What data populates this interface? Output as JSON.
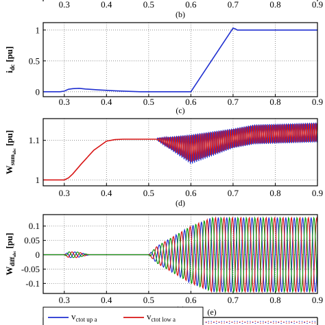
{
  "colors": {
    "blue": "#1f2fd0",
    "red": "#d81515",
    "green": "#139a13",
    "grid": "#7a7a7a",
    "axis": "#000000"
  },
  "chart_data": [
    {
      "id": "top-axis-strip",
      "type": "line",
      "panel_label": "(b)",
      "xlim": [
        0.25,
        0.9
      ],
      "xticks": [
        0.3,
        0.4,
        0.5,
        0.6,
        0.7,
        0.8,
        0.9
      ],
      "xtick_labels": [
        "0.3",
        "0.4",
        "0.5",
        "0.6",
        "0.7",
        "0.8",
        "0.9"
      ]
    },
    {
      "id": "idc",
      "type": "line",
      "panel_label": "(c)",
      "ylabel": "i",
      "ylabel_sub": "dc",
      "ylabel_unit": " [pu]",
      "xlim": [
        0.25,
        0.9
      ],
      "ylim": [
        -0.08,
        1.12
      ],
      "yticks": [
        0,
        0.5,
        1
      ],
      "ytick_labels": [
        "0",
        "0.5",
        "1"
      ],
      "xticks": [
        0.3,
        0.4,
        0.5,
        0.6,
        0.7,
        0.8,
        0.9
      ],
      "xtick_labels": [
        "0.3",
        "0.4",
        "0.5",
        "0.6",
        "0.7",
        "0.8",
        "0.9"
      ],
      "series": [
        {
          "color": "blue",
          "x": [
            0.25,
            0.29,
            0.3,
            0.31,
            0.32,
            0.335,
            0.35,
            0.38,
            0.42,
            0.48,
            0.55,
            0.6,
            0.6,
            0.7,
            0.705,
            0.71,
            0.72,
            0.9
          ],
          "y": [
            0.0,
            0.0,
            0.01,
            0.04,
            0.05,
            0.055,
            0.045,
            0.03,
            0.015,
            0.0,
            0.0,
            0.0,
            0.0,
            1.03,
            1.02,
            1.0,
            1.0,
            1.0
          ]
        }
      ]
    },
    {
      "id": "wsum",
      "type": "line",
      "panel_label": "(d)",
      "ylabel": "W",
      "ylabel_sub": "sum",
      "ylabel_subsub": "abc",
      "ylabel_unit": " [pu]",
      "xlim": [
        0.25,
        0.9
      ],
      "ylim": [
        0.985,
        1.155
      ],
      "yticks": [
        1,
        1.1
      ],
      "ytick_labels": [
        "1",
        "1.1"
      ],
      "xticks": [
        0.3,
        0.4,
        0.5,
        0.6,
        0.7,
        0.8,
        0.9
      ],
      "xtick_labels": [
        "0.3",
        "0.4",
        "0.5",
        "0.6",
        "0.7",
        "0.8",
        "0.9"
      ],
      "series": [
        {
          "color": "red",
          "x": [
            0.25,
            0.3,
            0.31,
            0.32,
            0.34,
            0.37,
            0.4,
            0.42,
            0.44,
            0.5,
            0.52
          ],
          "y": [
            1.0,
            1.0,
            1.005,
            1.015,
            1.04,
            1.075,
            1.098,
            1.102,
            1.103,
            1.103,
            1.103
          ]
        },
        {
          "color": "blue",
          "oscillation_from": 0.52,
          "oscillation_to": 0.9,
          "period": 0.005,
          "upper": {
            "x": [
              0.52,
              0.6,
              0.7,
              0.75,
              0.9
            ],
            "y": [
              1.106,
              1.115,
              1.13,
              1.14,
              1.145
            ]
          },
          "lower": {
            "x": [
              0.52,
              0.6,
              0.7,
              0.75,
              0.9
            ],
            "y": [
              1.1,
              1.04,
              1.08,
              1.09,
              1.095
            ]
          }
        },
        {
          "color": "red",
          "oscillation_from": 0.52,
          "oscillation_to": 0.9,
          "period": 0.005,
          "upper": {
            "x": [
              0.52,
              0.6,
              0.7,
              0.75,
              0.9
            ],
            "y": [
              1.105,
              1.113,
              1.128,
              1.138,
              1.143
            ]
          },
          "lower": {
            "x": [
              0.52,
              0.6,
              0.7,
              0.75,
              0.9
            ],
            "y": [
              1.101,
              1.045,
              1.082,
              1.092,
              1.097
            ]
          }
        }
      ]
    },
    {
      "id": "wdiff",
      "type": "line",
      "panel_label": "(e)",
      "ylabel": "W",
      "ylabel_sub": "diff",
      "ylabel_subsub": "abc",
      "ylabel_unit": " [pu]",
      "xlim": [
        0.25,
        0.9
      ],
      "ylim": [
        -0.135,
        0.14
      ],
      "yticks": [
        -0.1,
        -0.05,
        0,
        0.05,
        0.1
      ],
      "ytick_labels": [
        "-0.1",
        "-0.05",
        "0",
        "0.05",
        "0.1"
      ],
      "xticks": [
        0.3,
        0.4,
        0.5,
        0.6,
        0.7,
        0.8,
        0.9
      ],
      "xtick_labels": [
        "0.3",
        "0.4",
        "0.5",
        "0.6",
        "0.7",
        "0.8",
        "0.9"
      ],
      "series": [
        {
          "color": "blue",
          "period": 0.02,
          "phase": 0.0,
          "envelope": {
            "x": [
              0.25,
              0.3,
              0.31,
              0.33,
              0.36,
              0.5,
              0.52,
              0.6,
              0.65,
              0.9
            ],
            "y": [
              0,
              0,
              0.01,
              0.01,
              0,
              0,
              0.03,
              0.1,
              0.13,
              0.13
            ]
          }
        },
        {
          "color": "red",
          "period": 0.02,
          "phase": 0.333,
          "envelope": {
            "x": [
              0.25,
              0.3,
              0.31,
              0.33,
              0.36,
              0.5,
              0.52,
              0.6,
              0.65,
              0.9
            ],
            "y": [
              0,
              0,
              0.01,
              0.01,
              0,
              0,
              0.03,
              0.1,
              0.13,
              0.13
            ]
          }
        },
        {
          "color": "green",
          "period": 0.02,
          "phase": 0.667,
          "envelope": {
            "x": [
              0.25,
              0.3,
              0.31,
              0.33,
              0.36,
              0.5,
              0.52,
              0.6,
              0.65,
              0.9
            ],
            "y": [
              0,
              0,
              0.01,
              0.01,
              0,
              0,
              0.03,
              0.1,
              0.13,
              0.13
            ]
          }
        }
      ]
    },
    {
      "id": "vctot",
      "type": "line",
      "panel_label": "(e)",
      "legend_position": "top-left",
      "legend": [
        {
          "color": "blue",
          "text": "v",
          "sub": "ctot up a"
        },
        {
          "color": "red",
          "text": "v",
          "sub": "ctot low a"
        }
      ]
    }
  ]
}
